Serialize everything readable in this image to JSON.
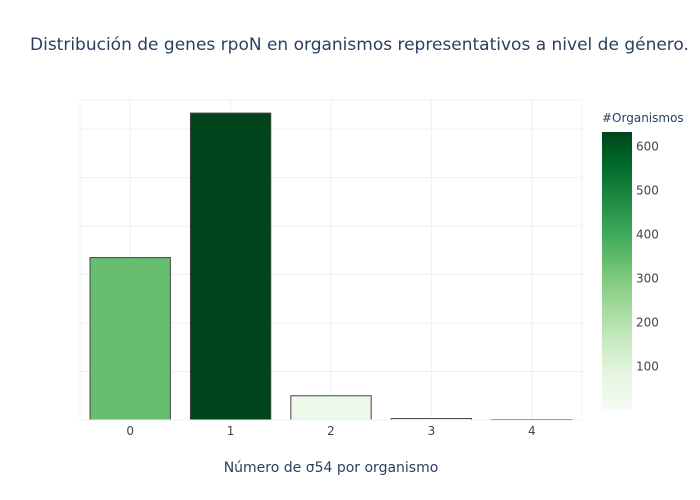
{
  "chart_data": {
    "type": "bar",
    "title": "Distribución de genes rpoN en organismos representativos a nivel de género.",
    "xlabel": "Número de σ54 por organismo",
    "ylabel": "",
    "categories": [
      "0",
      "1",
      "2",
      "3",
      "4"
    ],
    "values": [
      335,
      633,
      50,
      3,
      1
    ],
    "ylim": [
      0,
      660
    ],
    "grid": true,
    "y_tick_labels_visible": false,
    "colorscale": "Greens",
    "colorbar": {
      "title": "#Organismos",
      "range": [
        1,
        633
      ],
      "ticks": [
        100,
        200,
        300,
        400,
        500,
        600
      ]
    },
    "colors": {
      "bar_stroke": "#444444",
      "grid": "#ebf0f8",
      "text": "#2a3f5f",
      "greens": [
        "#f7fcf5",
        "#e5f5e0",
        "#c7e9c0",
        "#a1d99b",
        "#74c476",
        "#41ab5d",
        "#238b45",
        "#006d2c",
        "#00441b"
      ]
    }
  }
}
